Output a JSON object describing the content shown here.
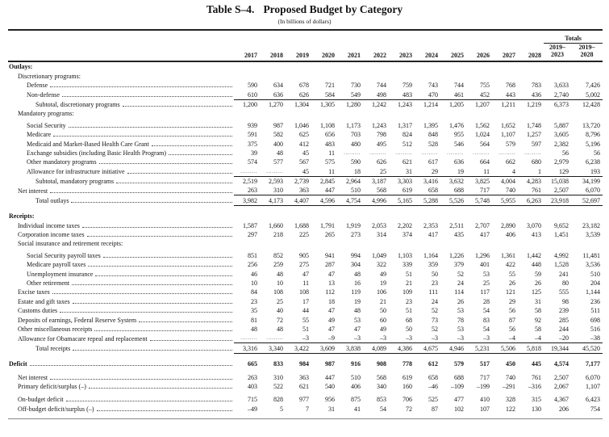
{
  "title": {
    "number": "Table S–4.",
    "name": "Proposed Budget by Category",
    "units": "(In billions of dollars)"
  },
  "columns": [
    "2017",
    "2018",
    "2019",
    "2020",
    "2021",
    "2022",
    "2023",
    "2024",
    "2025",
    "2026",
    "2027",
    "2028"
  ],
  "totals": {
    "label": "Totals",
    "columns": [
      [
        "2019–",
        "2023"
      ],
      [
        "2019–",
        "2028"
      ]
    ]
  },
  "rows": [
    {
      "label": "Outlays:",
      "indent": 0,
      "bold": true,
      "leader": false,
      "values": []
    },
    {
      "label": "Discretionary programs:",
      "indent": 1,
      "leader": false,
      "values": []
    },
    {
      "label": "Defense",
      "indent": 2,
      "leader": true,
      "values": [
        "590",
        "634",
        "678",
        "721",
        "730",
        "744",
        "759",
        "743",
        "744",
        "755",
        "768",
        "783",
        "3,633",
        "7,426"
      ]
    },
    {
      "label": "Non-defense",
      "indent": 2,
      "leader": true,
      "underline": true,
      "values": [
        "610",
        "636",
        "626",
        "584",
        "549",
        "498",
        "483",
        "470",
        "461",
        "452",
        "443",
        "436",
        "2,740",
        "5,002"
      ]
    },
    {
      "label": "Subtotal, discretionary programs",
      "indent": 3,
      "leader": true,
      "values": [
        "1,200",
        "1,270",
        "1,304",
        "1,305",
        "1,280",
        "1,242",
        "1,243",
        "1,214",
        "1,205",
        "1,207",
        "1,211",
        "1,219",
        "6,373",
        "12,428"
      ]
    },
    {
      "label": "Mandatory programs:",
      "indent": 1,
      "leader": false,
      "values": []
    },
    {
      "label": "Social Security",
      "indent": 2,
      "leader": true,
      "spacer_before": "xs",
      "values": [
        "939",
        "987",
        "1,046",
        "1,108",
        "1,173",
        "1,243",
        "1,317",
        "1,395",
        "1,476",
        "1,562",
        "1,652",
        "1,748",
        "5,887",
        "13,720"
      ]
    },
    {
      "label": "Medicare",
      "indent": 2,
      "leader": true,
      "values": [
        "591",
        "582",
        "625",
        "656",
        "703",
        "798",
        "824",
        "848",
        "955",
        "1,024",
        "1,107",
        "1,257",
        "3,605",
        "8,796"
      ]
    },
    {
      "label": "Medicaid and Market-Based Health Care Grant",
      "indent": 2,
      "leader": true,
      "values": [
        "375",
        "400",
        "412",
        "483",
        "480",
        "495",
        "512",
        "528",
        "546",
        "564",
        "579",
        "597",
        "2,382",
        "5,196"
      ]
    },
    {
      "label": "Exchange subsidies (including Basic Health Program)",
      "indent": 2,
      "leader": true,
      "values": [
        "39",
        "48",
        "45",
        "11",
        ".........",
        ".........",
        ".........",
        ".........",
        ".........",
        ".........",
        ".........",
        ".........",
        "56",
        "56"
      ]
    },
    {
      "label": "Other mandatory programs",
      "indent": 2,
      "leader": true,
      "values": [
        "574",
        "577",
        "567",
        "575",
        "590",
        "626",
        "621",
        "617",
        "636",
        "664",
        "662",
        "680",
        "2,979",
        "6,238"
      ]
    },
    {
      "label": "Allowance for infrastructure initiative",
      "indent": 2,
      "leader": true,
      "underline": true,
      "values": [
        ".........",
        ".........",
        "45",
        "11",
        "18",
        "25",
        "31",
        "29",
        "19",
        "11",
        "4",
        "1",
        "129",
        "193"
      ]
    },
    {
      "label": "Subtotal, mandatory programs",
      "indent": 3,
      "leader": true,
      "values": [
        "2,519",
        "2,593",
        "2,739",
        "2,845",
        "2,964",
        "3,187",
        "3,303",
        "3,416",
        "3,632",
        "3,825",
        "4,004",
        "4,283",
        "15,038",
        "34,199"
      ]
    },
    {
      "label": "Net interest",
      "indent": 1,
      "leader": true,
      "underline": true,
      "values": [
        "263",
        "310",
        "363",
        "447",
        "510",
        "568",
        "619",
        "658",
        "688",
        "717",
        "740",
        "761",
        "2,507",
        "6,070"
      ]
    },
    {
      "label": "Total outlays",
      "indent": 3,
      "leader": true,
      "underline": true,
      "values": [
        "3,982",
        "4,173",
        "4,407",
        "4,596",
        "4,754",
        "4,996",
        "5,165",
        "5,288",
        "5,526",
        "5,748",
        "5,955",
        "6,263",
        "23,918",
        "52,697"
      ]
    },
    {
      "label": "Receipts:",
      "indent": 0,
      "bold": true,
      "leader": false,
      "spacer_before": "md",
      "values": []
    },
    {
      "label": "Individual income taxes",
      "indent": 1,
      "leader": true,
      "values": [
        "1,587",
        "1,660",
        "1,688",
        "1,791",
        "1,919",
        "2,053",
        "2,202",
        "2,353",
        "2,511",
        "2,707",
        "2,890",
        "3,070",
        "9,652",
        "23,182"
      ]
    },
    {
      "label": "Corporation income taxes",
      "indent": 1,
      "leader": true,
      "values": [
        "297",
        "218",
        "225",
        "265",
        "273",
        "314",
        "374",
        "417",
        "435",
        "417",
        "406",
        "413",
        "1,451",
        "3,539"
      ]
    },
    {
      "label": "Social insurance and retirement receipts:",
      "indent": 1,
      "leader": false,
      "values": []
    },
    {
      "label": "Social Security payroll taxes",
      "indent": 2,
      "leader": true,
      "spacer_before": "xs",
      "values": [
        "851",
        "852",
        "905",
        "941",
        "994",
        "1,049",
        "1,103",
        "1,164",
        "1,226",
        "1,296",
        "1,361",
        "1,442",
        "4,992",
        "11,481"
      ]
    },
    {
      "label": "Medicare payroll taxes",
      "indent": 2,
      "leader": true,
      "values": [
        "256",
        "259",
        "275",
        "287",
        "304",
        "322",
        "339",
        "359",
        "379",
        "401",
        "422",
        "448",
        "1,528",
        "3,536"
      ]
    },
    {
      "label": "Unemployment insurance",
      "indent": 2,
      "leader": true,
      "values": [
        "46",
        "48",
        "47",
        "47",
        "48",
        "49",
        "51",
        "50",
        "52",
        "53",
        "55",
        "59",
        "241",
        "510"
      ]
    },
    {
      "label": "Other retirement",
      "indent": 2,
      "leader": true,
      "values": [
        "10",
        "10",
        "11",
        "13",
        "16",
        "19",
        "21",
        "23",
        "24",
        "25",
        "26",
        "26",
        "80",
        "204"
      ]
    },
    {
      "label": "Excise taxes",
      "indent": 1,
      "leader": true,
      "values": [
        "84",
        "108",
        "108",
        "112",
        "119",
        "106",
        "109",
        "111",
        "114",
        "117",
        "121",
        "125",
        "555",
        "1,144"
      ]
    },
    {
      "label": "Estate and gift taxes",
      "indent": 1,
      "leader": true,
      "values": [
        "23",
        "25",
        "17",
        "18",
        "19",
        "21",
        "23",
        "24",
        "26",
        "28",
        "29",
        "31",
        "98",
        "236"
      ]
    },
    {
      "label": "Customs duties",
      "indent": 1,
      "leader": true,
      "values": [
        "35",
        "40",
        "44",
        "47",
        "48",
        "50",
        "51",
        "52",
        "53",
        "54",
        "56",
        "58",
        "239",
        "511"
      ]
    },
    {
      "label": "Deposits of earnings, Federal Reserve System",
      "indent": 1,
      "leader": true,
      "values": [
        "81",
        "72",
        "55",
        "49",
        "53",
        "60",
        "68",
        "73",
        "78",
        "83",
        "87",
        "92",
        "285",
        "698"
      ]
    },
    {
      "label": "Other miscellaneous receipts",
      "indent": 1,
      "leader": true,
      "values": [
        "48",
        "48",
        "51",
        "47",
        "47",
        "49",
        "50",
        "52",
        "53",
        "54",
        "56",
        "58",
        "244",
        "516"
      ]
    },
    {
      "label": "Allowance for Obamacare repeal and replacement",
      "indent": 1,
      "leader": true,
      "underline": true,
      "values": [
        ".........",
        ".........",
        "–3",
        "–9",
        "–3",
        "–3",
        "–3",
        "–3",
        "–3",
        "–3",
        "–4",
        "–4",
        "–20",
        "–38"
      ]
    },
    {
      "label": "Total receipts",
      "indent": 3,
      "leader": true,
      "underline": true,
      "values": [
        "3,316",
        "3,340",
        "3,422",
        "3,609",
        "3,838",
        "4,089",
        "4,386",
        "4,675",
        "4,946",
        "5,231",
        "5,506",
        "5,818",
        "19,344",
        "45,520"
      ]
    },
    {
      "label": "Deficit",
      "indent": 0,
      "bold": true,
      "leader": true,
      "spacer_before": "md",
      "values": [
        "665",
        "833",
        "984",
        "987",
        "916",
        "908",
        "778",
        "612",
        "579",
        "517",
        "450",
        "445",
        "4,574",
        "7,177"
      ]
    },
    {
      "label": "Net interest",
      "indent": 1,
      "leader": true,
      "spacer_before": "sm",
      "values": [
        "263",
        "310",
        "363",
        "447",
        "510",
        "568",
        "619",
        "658",
        "688",
        "717",
        "740",
        "761",
        "2,507",
        "6,070"
      ]
    },
    {
      "label": "Primary deficit/surplus (–)",
      "indent": 1,
      "leader": true,
      "values": [
        "403",
        "522",
        "621",
        "540",
        "406",
        "340",
        "160",
        "–46",
        "–109",
        "–199",
        "–291",
        "–316",
        "2,067",
        "1,107"
      ]
    },
    {
      "label": "On-budget deficit",
      "indent": 1,
      "leader": true,
      "spacer_before": "sm",
      "values": [
        "715",
        "828",
        "977",
        "956",
        "875",
        "853",
        "706",
        "525",
        "477",
        "410",
        "328",
        "315",
        "4,367",
        "6,423"
      ]
    },
    {
      "label": "Off-budget deficit/surplus (–)",
      "indent": 1,
      "leader": true,
      "values": [
        "–49",
        "5",
        "7",
        "31",
        "41",
        "54",
        "72",
        "87",
        "102",
        "107",
        "122",
        "130",
        "206",
        "754"
      ]
    }
  ]
}
